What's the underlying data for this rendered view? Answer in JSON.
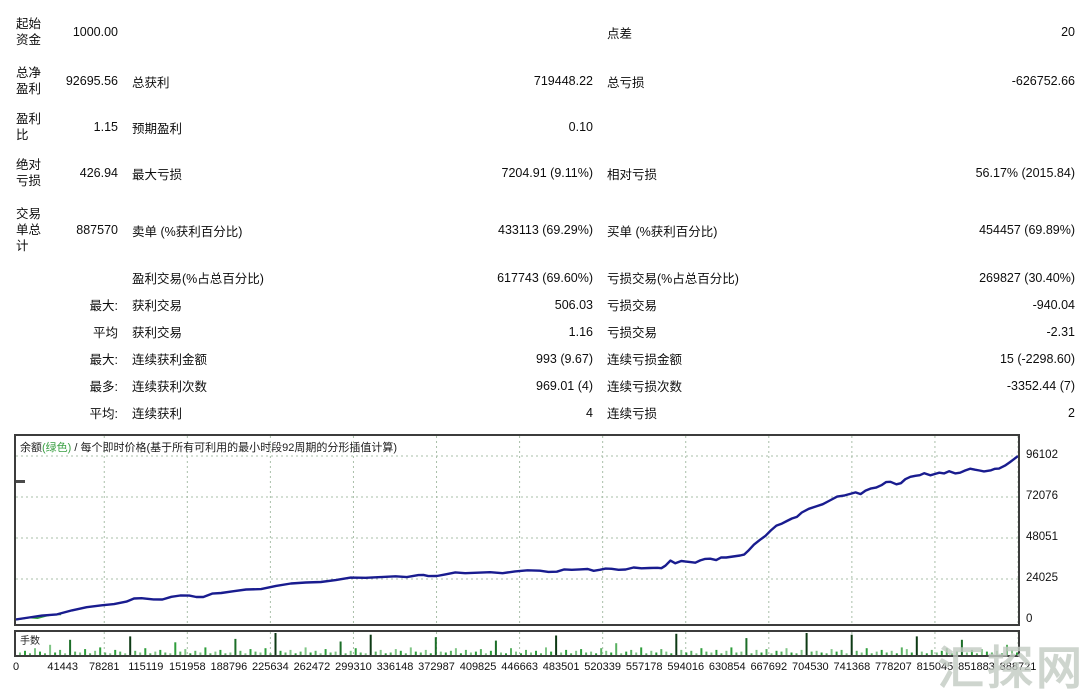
{
  "report": {
    "rows": [
      {
        "c0": "起始\n资金",
        "v1": "1000.00",
        "l2": "",
        "v2": "",
        "l3": "点差",
        "v3": "20"
      },
      {
        "c0": "总净\n盈利",
        "v1": "92695.56",
        "l2": "总获利",
        "v2": "719448.22",
        "l3": "总亏损",
        "v3": "-626752.66"
      },
      {
        "c0": "盈利\n比",
        "v1": "1.15",
        "l2": "预期盈利",
        "v2": "0.10",
        "l3": "",
        "v3": ""
      },
      {
        "c0": "绝对\n亏损",
        "v1": "426.94",
        "l2": "最大亏损",
        "v2": "7204.91 (9.11%)",
        "l3": "相对亏损",
        "v3": "56.17% (2015.84)"
      },
      {
        "c0": "交易\n单总\n计",
        "v1": "887570",
        "l2": "卖单 (%获利百分比)",
        "v2": "433113 (69.29%)",
        "l3": "买单 (%获利百分比)",
        "v3": "454457 (69.89%)"
      },
      {
        "c0": "",
        "v1": "",
        "l2": "盈利交易(%占总百分比)",
        "v2": "617743 (69.60%)",
        "l3": "亏损交易(%占总百分比)",
        "v3": "269827 (30.40%)"
      },
      {
        "c0": "",
        "v1": "最大:",
        "l2": "获利交易",
        "v2": "506.03",
        "l3": "亏损交易",
        "v3": "-940.04"
      },
      {
        "c0": "",
        "v1": "平均",
        "l2": "获利交易",
        "v2": "1.16",
        "l3": "亏损交易",
        "v3": "-2.31"
      },
      {
        "c0": "",
        "v1": "最大:",
        "l2": "连续获利金额",
        "v2": "993 (9.67)",
        "l3": "连续亏损金额",
        "v3": "15 (-2298.60)"
      },
      {
        "c0": "",
        "v1": "最多:",
        "l2": "连续获利次数",
        "v2": "969.01 (4)",
        "l3": "连续亏损次数",
        "v3": "-3352.44 (7)"
      },
      {
        "c0": "",
        "v1": "平均:",
        "l2": "连续获利",
        "v2": "4",
        "l3": "连续亏损",
        "v3": "2"
      }
    ]
  },
  "chart": {
    "title_balance": "余额",
    "title_green": "(绿色)",
    "title_rest": " / 每个即时价格(基于所有可利用的最小时段92周期的分形插值计算)",
    "lots_label": "手数",
    "y_tick_labels": [
      "96102",
      "72076",
      "48051",
      "24025",
      "0"
    ],
    "x_tick_labels": [
      "0",
      "41443",
      "78281",
      "115119",
      "151958",
      "188796",
      "225634",
      "262472",
      "299310",
      "336148",
      "372987",
      "409825",
      "446663",
      "483501",
      "520339",
      "557178",
      "594016",
      "630854",
      "667692",
      "704530",
      "741368",
      "778207",
      "815045",
      "851883",
      "888721"
    ],
    "colors": {
      "balance_line": "#191c8f",
      "lots_green": "#2f9e3c",
      "grid": "#a9bfa9",
      "border": "#3c3c3c"
    }
  },
  "watermark": {
    "text": "汇探网"
  },
  "chart_data": [
    {
      "type": "line",
      "title": "余额(绿色) / 每个即时价格(基于所有可利用的最小时段92周期的分形插值计算)",
      "ylim": [
        0,
        96102
      ],
      "xlim": [
        0,
        888721
      ],
      "y_ticks": [
        0,
        24025,
        48051,
        72076,
        96102
      ],
      "x_ticks": [
        0,
        41443,
        78281,
        115119,
        151958,
        188796,
        225634,
        262472,
        299310,
        336148,
        372987,
        409825,
        446663,
        483501,
        520339,
        557178,
        594016,
        630854,
        667692,
        704530,
        741368,
        778207,
        815045,
        851883,
        888721
      ],
      "grid": true,
      "series": [
        {
          "name": "余额",
          "color": "#191c8f",
          "points": [
            [
              0,
              300
            ],
            [
              23000,
              2600
            ],
            [
              49500,
              5600
            ],
            [
              76000,
              8600
            ],
            [
              98000,
              10800
            ],
            [
              111300,
              12800
            ],
            [
              121900,
              12100
            ],
            [
              137800,
              13600
            ],
            [
              153700,
              14300
            ],
            [
              166100,
              13500
            ],
            [
              182000,
              15800
            ],
            [
              204100,
              17900
            ],
            [
              230600,
              20000
            ],
            [
              257100,
              22000
            ],
            [
              283600,
              23400
            ],
            [
              310100,
              24700
            ],
            [
              336600,
              25600
            ],
            [
              356900,
              26300
            ],
            [
              365700,
              25700
            ],
            [
              380800,
              26700
            ],
            [
              398400,
              27400
            ],
            [
              420500,
              28000
            ],
            [
              442600,
              28500
            ],
            [
              464700,
              28900
            ],
            [
              479700,
              28300
            ],
            [
              493000,
              29400
            ],
            [
              507100,
              29900
            ],
            [
              517700,
              29400
            ],
            [
              528300,
              30000
            ],
            [
              540700,
              29600
            ],
            [
              554800,
              30300
            ],
            [
              568900,
              30600
            ],
            [
              576000,
              31800
            ],
            [
              580400,
              34800
            ],
            [
              584800,
              33200
            ],
            [
              590100,
              34600
            ],
            [
              598100,
              33900
            ],
            [
              606900,
              34900
            ],
            [
              615700,
              35900
            ],
            [
              621000,
              35100
            ],
            [
              629900,
              36600
            ],
            [
              642200,
              37800
            ],
            [
              649300,
              40500
            ],
            [
              659900,
              47000
            ],
            [
              669600,
              52500
            ],
            [
              679300,
              56500
            ],
            [
              688200,
              59500
            ],
            [
              697000,
              63000
            ],
            [
              709400,
              66500
            ],
            [
              721800,
              70000
            ],
            [
              735000,
              73000
            ],
            [
              744700,
              74800
            ],
            [
              749100,
              73800
            ],
            [
              757900,
              77000
            ],
            [
              767600,
              79000
            ],
            [
              775600,
              81000
            ],
            [
              780900,
              79500
            ],
            [
              788800,
              82500
            ],
            [
              797700,
              84500
            ],
            [
              805600,
              86000
            ],
            [
              810900,
              84800
            ],
            [
              818900,
              86300
            ],
            [
              827700,
              87200
            ],
            [
              833000,
              85900
            ],
            [
              841800,
              87600
            ],
            [
              850600,
              88100
            ],
            [
              858600,
              87100
            ],
            [
              864800,
              87700
            ],
            [
              871900,
              88700
            ],
            [
              877200,
              90500
            ],
            [
              881600,
              92500
            ],
            [
              885100,
              94200
            ],
            [
              888721,
              96102
            ]
          ]
        },
        {
          "name": "手数(绿色起始段)",
          "color": "#2f9e3c",
          "points": [
            [
              0,
              200
            ],
            [
              12000,
              1400
            ],
            [
              26000,
              2300
            ],
            [
              40000,
              3300
            ]
          ]
        }
      ]
    },
    {
      "type": "bar",
      "title": "手数",
      "unit": "relative_height",
      "values": [
        3,
        5,
        2,
        8,
        4,
        2,
        12,
        3,
        6,
        2,
        18,
        4,
        3,
        7,
        2,
        5,
        9,
        3,
        2,
        6,
        4,
        2,
        22,
        5,
        3,
        8,
        2,
        4,
        6,
        3,
        2,
        15,
        4,
        7,
        2,
        5,
        3,
        9,
        2,
        4,
        6,
        2,
        3,
        19,
        5,
        2,
        7,
        4,
        3,
        8,
        2,
        26,
        5,
        3,
        6,
        2,
        4,
        9,
        3,
        5,
        2,
        7,
        3,
        4,
        16,
        2,
        5,
        8,
        3,
        2,
        24,
        4,
        6,
        2,
        3,
        7,
        5,
        2,
        9,
        4,
        3,
        6,
        2,
        21,
        4,
        3,
        5,
        8,
        2,
        6,
        3,
        4,
        7,
        2,
        5,
        17,
        3,
        2,
        8,
        4,
        2,
        6,
        3,
        5,
        2,
        9,
        4,
        23,
        3,
        6,
        2,
        5,
        7,
        3,
        4,
        2,
        8,
        5,
        3,
        14,
        2,
        4,
        6,
        3,
        9,
        2,
        5,
        3,
        7,
        4,
        2,
        25,
        6,
        3,
        5,
        2,
        8,
        4,
        3,
        6,
        2,
        5,
        9,
        3,
        4,
        20,
        2,
        6,
        3,
        7,
        2,
        5,
        4,
        8,
        3,
        2,
        6,
        26,
        4,
        5,
        3,
        2,
        7,
        4,
        6,
        2,
        24,
        5,
        3,
        8,
        2,
        4,
        6,
        3,
        5,
        2,
        9,
        7,
        3,
        22,
        4,
        2,
        6,
        3,
        5,
        8,
        2,
        4,
        18,
        3,
        6,
        2,
        7,
        4,
        3,
        5,
        2,
        12,
        6,
        3
      ]
    }
  ]
}
